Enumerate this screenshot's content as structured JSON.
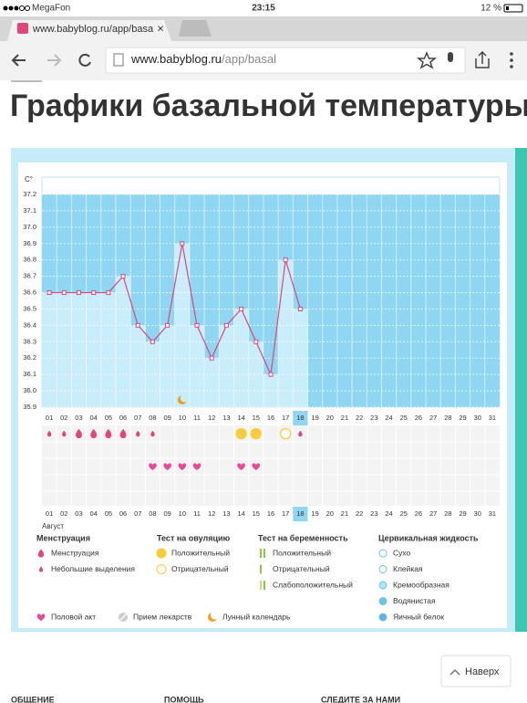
{
  "status_bar": {
    "carrier": "MegaFon",
    "time": "23:15",
    "battery": "12 %"
  },
  "browser": {
    "tab_title": "www.babyblog.ru/app/basa",
    "url_host": "www.babyblog.ru",
    "url_path": "/app/basal"
  },
  "page": {
    "title": "Графики базальной температуры"
  },
  "chart_data": {
    "type": "line",
    "y_label": "C°",
    "x_label": "Август",
    "categories": [
      "01",
      "02",
      "03",
      "04",
      "05",
      "06",
      "07",
      "08",
      "09",
      "10",
      "11",
      "12",
      "13",
      "14",
      "15",
      "16",
      "17",
      "18",
      "19",
      "20",
      "21",
      "22",
      "23",
      "24",
      "25",
      "26",
      "27",
      "28",
      "29",
      "30",
      "31"
    ],
    "values": [
      36.6,
      36.6,
      36.6,
      36.6,
      36.6,
      36.7,
      36.4,
      36.3,
      36.4,
      36.9,
      36.4,
      36.2,
      36.4,
      36.5,
      36.3,
      36.1,
      36.8,
      36.5,
      null,
      null,
      null,
      null,
      null,
      null,
      null,
      null,
      null,
      null,
      null,
      null,
      null
    ],
    "color": "#e0457b",
    "ylim": [
      35.9,
      37.2
    ],
    "yticks": [
      35.9,
      {
        "value": 36,
        "label": "36.0"
      },
      36.1,
      36.2,
      36.3,
      36.4,
      36.5,
      36.6,
      36.7,
      36.8,
      36.9,
      {
        "value": 37,
        "label": "37.0"
      },
      37.1,
      37.2
    ],
    "grid": true,
    "highlight": 17,
    "weekend_color": "#e0457b",
    "weekends": [
      0,
      1,
      7,
      8,
      14,
      15,
      21,
      22,
      28,
      29
    ],
    "menstruation": [
      "light",
      "light",
      "heavy",
      "heavy",
      "heavy",
      "heavy",
      "light",
      "light",
      null,
      null,
      null,
      null,
      null,
      null,
      null,
      null,
      null,
      "light",
      null,
      null,
      null,
      null,
      null,
      null,
      null,
      null,
      null,
      null,
      null,
      null,
      null
    ],
    "ovulation_test": [
      null,
      null,
      null,
      null,
      null,
      null,
      null,
      null,
      null,
      null,
      null,
      null,
      null,
      "positive",
      "positive",
      null,
      "negative",
      null,
      null,
      null,
      null,
      null,
      null,
      null,
      null,
      null,
      null,
      null,
      null,
      null,
      null
    ],
    "intercourse": [
      false,
      false,
      false,
      false,
      false,
      false,
      false,
      true,
      true,
      true,
      true,
      false,
      false,
      true,
      true,
      false,
      false,
      false,
      false,
      false,
      false,
      false,
      false,
      false,
      false,
      false,
      false,
      false,
      false,
      false,
      false
    ],
    "moon": [
      9
    ]
  },
  "legend": {
    "groups": [
      {
        "title": "Менструация",
        "items": [
          "Менструация",
          "Небольшие выделения"
        ]
      },
      {
        "title": "Тест на овуляцию",
        "items": [
          "Положительный",
          "Отрицательный"
        ]
      },
      {
        "title": "Тест на беременность",
        "items": [
          "Положительный",
          "Отрицательный",
          "Слабоположительный"
        ]
      },
      {
        "title": "Цервикальная жидкость",
        "items": [
          "Сухо",
          "Клейкая",
          "Кремообразная",
          "Водянистая",
          "Яичный белок"
        ]
      }
    ],
    "extras": [
      "Половой акт",
      "Прием лекарств",
      "Лунный календарь"
    ]
  },
  "back_to_top": "Наверх",
  "footer": [
    "ОБЩЕНИЕ",
    "ПОМОЩЬ",
    "СЛЕДИТЕ ЗА НАМИ"
  ]
}
